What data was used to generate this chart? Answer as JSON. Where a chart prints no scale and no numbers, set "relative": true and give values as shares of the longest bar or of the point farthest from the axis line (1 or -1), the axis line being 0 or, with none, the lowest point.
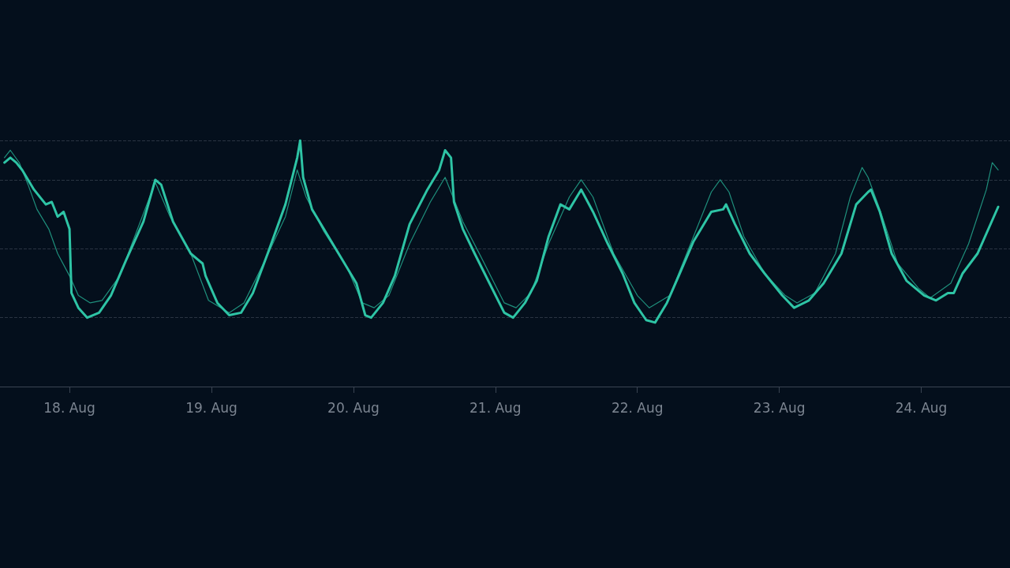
{
  "chart_data": {
    "type": "line",
    "relative": true,
    "grid": "y",
    "marker": "none",
    "line_style": "solid",
    "xlim": [
      "--08-17T12:15",
      "--08-24T15:00"
    ],
    "xticks": [
      {
        "value": "--08-18",
        "label": "18. Aug"
      },
      {
        "value": "--08-19",
        "label": "19. Aug"
      },
      {
        "value": "--08-20",
        "label": "20. Aug"
      },
      {
        "value": "--08-21",
        "label": "21. Aug"
      },
      {
        "value": "--08-22",
        "label": "22. Aug"
      },
      {
        "value": "--08-23",
        "label": "23. Aug"
      },
      {
        "value": "--08-24",
        "label": "24. Aug"
      }
    ],
    "series": [
      {
        "color": "#1f8f7c",
        "x": [
          "--08-17T13:00",
          "--08-17T14:00",
          "--08-17T15:30",
          "--08-17T17:00",
          "--08-17T18:30",
          "--08-17T20:30",
          "--08-17T22:00",
          "--08-18T00:00",
          "--08-18T01:30",
          "--08-18T03:30",
          "--08-18T05:30",
          "--08-18T08:30",
          "--08-18T11:30",
          "--08-18T14:30",
          "--08-18T17:00",
          "--08-18T20:30",
          "--08-18T23:30",
          "--08-19T03:00",
          "--08-19T05:30",
          "--08-19T09:00",
          "--08-19T12:30",
          "--08-19T14:30",
          "--08-19T16:00",
          "--08-19T19:00",
          "--08-19T23:00",
          "--08-20T01:30",
          "--08-20T03:30",
          "--08-20T06:00",
          "--08-20T09:30",
          "--08-20T13:00",
          "--08-20T15:30",
          "--08-20T18:30",
          "--08-20T21:30",
          "--08-21T01:30",
          "--08-21T03:30",
          "--08-21T06:00",
          "--08-21T09:00",
          "--08-21T12:30",
          "--08-21T14:30",
          "--08-21T16:30",
          "--08-21T20:00",
          "--08-22T00:00",
          "--08-22T02:00",
          "--08-22T05:30",
          "--08-22T09:30",
          "--08-22T12:30",
          "--08-22T14:00",
          "--08-22T15:30",
          "--08-22T18:00",
          "--08-22T21:30",
          "--08-23T01:00",
          "--08-23T03:00",
          "--08-23T06:00",
          "--08-23T09:30",
          "--08-23T12:00",
          "--08-23T14:00",
          "--08-23T15:00",
          "--08-23T17:00",
          "--08-23T20:00",
          "--08-23T23:30",
          "--08-24T01:30",
          "--08-24T05:00",
          "--08-24T08:00",
          "--08-24T11:00",
          "--08-24T12:00",
          "--08-24T13:00"
        ],
        "values": [
          0.93,
          0.96,
          0.91,
          0.82,
          0.72,
          0.64,
          0.54,
          0.45,
          0.37,
          0.34,
          0.35,
          0.45,
          0.64,
          0.83,
          0.69,
          0.54,
          0.35,
          0.3,
          0.34,
          0.51,
          0.69,
          0.88,
          0.77,
          0.63,
          0.48,
          0.34,
          0.32,
          0.37,
          0.58,
          0.75,
          0.85,
          0.67,
          0.53,
          0.34,
          0.32,
          0.38,
          0.58,
          0.77,
          0.84,
          0.77,
          0.54,
          0.37,
          0.32,
          0.37,
          0.61,
          0.79,
          0.84,
          0.79,
          0.61,
          0.46,
          0.37,
          0.34,
          0.38,
          0.54,
          0.77,
          0.89,
          0.85,
          0.72,
          0.5,
          0.4,
          0.36,
          0.42,
          0.58,
          0.8,
          0.91,
          0.88
        ]
      },
      {
        "color": "#2ec4a5",
        "x": [
          "--08-17T13:00",
          "--08-17T14:00",
          "--08-17T15:00",
          "--08-17T16:00",
          "--08-17T18:00",
          "--08-17T20:00",
          "--08-17T21:00",
          "--08-17T22:00",
          "--08-17T23:00",
          "--08-18T00:00",
          "--08-18T00:20",
          "--08-18T01:30",
          "--08-18T03:00",
          "--08-18T05:00",
          "--08-18T07:00",
          "--08-18T09:30",
          "--08-18T12:30",
          "--08-18T14:30",
          "--08-18T15:30",
          "--08-18T17:30",
          "--08-18T20:30",
          "--08-18T22:30",
          "--08-18T23:00",
          "--08-19T01:00",
          "--08-19T03:00",
          "--08-19T05:00",
          "--08-19T07:00",
          "--08-19T09:30",
          "--08-19T12:30",
          "--08-19T14:30",
          "--08-19T15:00",
          "--08-19T15:30",
          "--08-19T17:00",
          "--08-19T19:00",
          "--08-19T21:30",
          "--08-20T00:30",
          "--08-20T02:00",
          "--08-20T03:00",
          "--08-20T05:00",
          "--08-20T07:00",
          "--08-20T09:30",
          "--08-20T12:30",
          "--08-20T14:30",
          "--08-20T15:30",
          "--08-20T16:30",
          "--08-20T17:00",
          "--08-20T18:30",
          "--08-20T20:30",
          "--08-20T23:00",
          "--08-21T01:30",
          "--08-21T03:00",
          "--08-21T05:00",
          "--08-21T07:00",
          "--08-21T09:00",
          "--08-21T11:00",
          "--08-21T12:30",
          "--08-21T14:30",
          "--08-21T16:30",
          "--08-21T19:00",
          "--08-21T21:30",
          "--08-21T23:30",
          "--08-22T01:30",
          "--08-22T03:00",
          "--08-22T05:00",
          "--08-22T07:00",
          "--08-22T09:30",
          "--08-22T12:30",
          "--08-22T14:30",
          "--08-22T15:00",
          "--08-22T16:30",
          "--08-22T19:00",
          "--08-22T21:30",
          "--08-23T00:30",
          "--08-23T02:30",
          "--08-23T05:00",
          "--08-23T07:30",
          "--08-23T10:30",
          "--08-23T13:00",
          "--08-23T15:00",
          "--08-23T15:30",
          "--08-23T17:00",
          "--08-23T19:00",
          "--08-23T21:30",
          "--08-24T00:30",
          "--08-24T02:30",
          "--08-24T04:30",
          "--08-24T05:30",
          "--08-24T07:00",
          "--08-24T09:30",
          "--08-24T13:00"
        ],
        "values": [
          0.91,
          0.93,
          0.91,
          0.88,
          0.8,
          0.74,
          0.75,
          0.69,
          0.71,
          0.64,
          0.38,
          0.32,
          0.28,
          0.3,
          0.37,
          0.51,
          0.67,
          0.84,
          0.82,
          0.67,
          0.54,
          0.5,
          0.45,
          0.34,
          0.29,
          0.3,
          0.38,
          0.54,
          0.74,
          0.93,
          1,
          0.85,
          0.72,
          0.64,
          0.54,
          0.42,
          0.29,
          0.28,
          0.34,
          0.45,
          0.66,
          0.8,
          0.88,
          0.96,
          0.93,
          0.75,
          0.64,
          0.54,
          0.42,
          0.3,
          0.28,
          0.34,
          0.43,
          0.61,
          0.74,
          0.72,
          0.8,
          0.71,
          0.58,
          0.46,
          0.34,
          0.27,
          0.26,
          0.34,
          0.45,
          0.59,
          0.71,
          0.72,
          0.74,
          0.66,
          0.54,
          0.46,
          0.37,
          0.32,
          0.35,
          0.42,
          0.54,
          0.74,
          0.79,
          0.8,
          0.71,
          0.54,
          0.43,
          0.37,
          0.35,
          0.38,
          0.38,
          0.46,
          0.54,
          0.73
        ]
      }
    ]
  }
}
